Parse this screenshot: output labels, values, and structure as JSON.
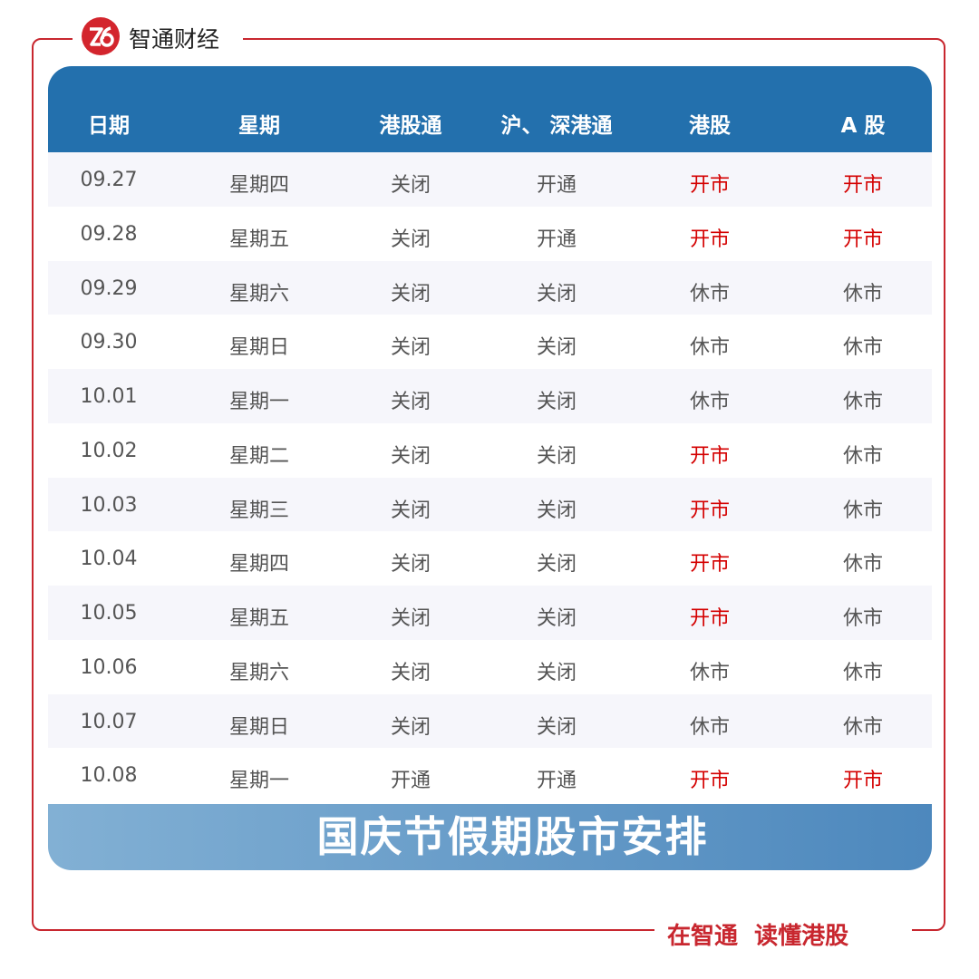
{
  "header": {
    "brand": "智通财经"
  },
  "table": {
    "headers": [
      "日期",
      "星期",
      "港股通",
      "沪、 深港通",
      "港股",
      "A 股"
    ],
    "rows": [
      {
        "cells": [
          "09.27",
          "星期四",
          "关闭",
          "开通",
          "开市",
          "开市"
        ],
        "colors": [
          "#555555",
          "#555555",
          "#555555",
          "#555555",
          "#d40000",
          "#d40000"
        ]
      },
      {
        "cells": [
          "09.28",
          "星期五",
          "关闭",
          "开通",
          "开市",
          "开市"
        ],
        "colors": [
          "#555555",
          "#555555",
          "#555555",
          "#555555",
          "#d40000",
          "#d40000"
        ]
      },
      {
        "cells": [
          "09.29",
          "星期六",
          "关闭",
          "关闭",
          "休市",
          "休市"
        ],
        "colors": [
          "#555555",
          "#555555",
          "#555555",
          "#555555",
          "#555555",
          "#555555"
        ]
      },
      {
        "cells": [
          "09.30",
          "星期日",
          "关闭",
          "关闭",
          "休市",
          "休市"
        ],
        "colors": [
          "#555555",
          "#555555",
          "#555555",
          "#555555",
          "#555555",
          "#555555"
        ]
      },
      {
        "cells": [
          "10.01",
          "星期一",
          "关闭",
          "关闭",
          "休市",
          "休市"
        ],
        "colors": [
          "#555555",
          "#555555",
          "#555555",
          "#555555",
          "#555555",
          "#555555"
        ]
      },
      {
        "cells": [
          "10.02",
          "星期二",
          "关闭",
          "关闭",
          "开市",
          "休市"
        ],
        "colors": [
          "#555555",
          "#555555",
          "#555555",
          "#555555",
          "#d40000",
          "#555555"
        ]
      },
      {
        "cells": [
          "10.03",
          "星期三",
          "关闭",
          "关闭",
          "开市",
          "休市"
        ],
        "colors": [
          "#555555",
          "#555555",
          "#555555",
          "#555555",
          "#d40000",
          "#555555"
        ]
      },
      {
        "cells": [
          "10.04",
          "星期四",
          "关闭",
          "关闭",
          "开市",
          "休市"
        ],
        "colors": [
          "#555555",
          "#555555",
          "#555555",
          "#555555",
          "#d40000",
          "#555555"
        ]
      },
      {
        "cells": [
          "10.05",
          "星期五",
          "关闭",
          "关闭",
          "开市",
          "休市"
        ],
        "colors": [
          "#555555",
          "#555555",
          "#555555",
          "#555555",
          "#d40000",
          "#555555"
        ]
      },
      {
        "cells": [
          "10.06",
          "星期六",
          "关闭",
          "关闭",
          "休市",
          "休市"
        ],
        "colors": [
          "#555555",
          "#555555",
          "#555555",
          "#555555",
          "#555555",
          "#555555"
        ]
      },
      {
        "cells": [
          "10.07",
          "星期日",
          "关闭",
          "关闭",
          "休市",
          "休市"
        ],
        "colors": [
          "#555555",
          "#555555",
          "#555555",
          "#555555",
          "#555555",
          "#555555"
        ]
      },
      {
        "cells": [
          "10.08",
          "星期一",
          "开通",
          "开通",
          "开市",
          "开市"
        ],
        "colors": [
          "#555555",
          "#555555",
          "#555555",
          "#555555",
          "#d40000",
          "#d40000"
        ]
      }
    ]
  },
  "footer": {
    "title": "国庆节假期股市安排",
    "slogan": "在智通  读懂港股"
  }
}
